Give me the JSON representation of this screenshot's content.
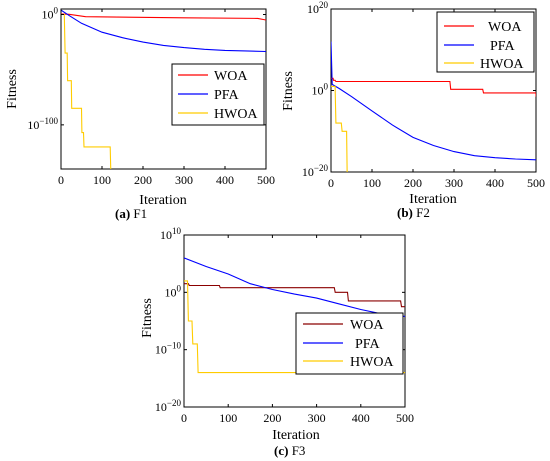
{
  "chart_data": [
    {
      "type": "line",
      "caption_letter": "(a)",
      "caption_text": " F1",
      "xlabel": "Iteration",
      "ylabel": "Fitness",
      "xlim": [
        0,
        500
      ],
      "xticks": [
        "0",
        "100",
        "200",
        "300",
        "400",
        "500"
      ],
      "ylim_log10": [
        -140,
        5
      ],
      "yticks": [
        {
          "exp": 0,
          "label": "10",
          "sup": "0"
        },
        {
          "exp": -100,
          "label": "10",
          "sup": "−100"
        }
      ],
      "legend_position": "middle-right",
      "series": [
        {
          "name": "WOA",
          "color": "#ff0000",
          "log10_points": [
            [
              0,
              0.5
            ],
            [
              20,
              0.2
            ],
            [
              60,
              -2
            ],
            [
              300,
              -3
            ],
            [
              480,
              -3.5
            ],
            [
              500,
              -5
            ]
          ]
        },
        {
          "name": "PFA",
          "color": "#0000ff",
          "log10_points": [
            [
              0,
              4
            ],
            [
              20,
              -1
            ],
            [
              50,
              -8
            ],
            [
              100,
              -16
            ],
            [
              150,
              -21
            ],
            [
              200,
              -25
            ],
            [
              250,
              -28
            ],
            [
              300,
              -30
            ],
            [
              350,
              -31.5
            ],
            [
              400,
              -32.5
            ],
            [
              450,
              -33
            ],
            [
              500,
              -33.5
            ]
          ]
        },
        {
          "name": "HWOA",
          "color": "#ffcc00",
          "log10_points": [
            [
              0,
              0
            ],
            [
              8,
              0
            ],
            [
              10,
              -35
            ],
            [
              15,
              -35
            ],
            [
              16,
              -60
            ],
            [
              25,
              -60
            ],
            [
              26,
              -85
            ],
            [
              50,
              -85
            ],
            [
              51,
              -107
            ],
            [
              55,
              -107
            ],
            [
              56,
              -120
            ],
            [
              120,
              -120
            ],
            [
              122,
              -150
            ],
            [
              500,
              -150
            ]
          ]
        }
      ]
    },
    {
      "type": "line",
      "caption_letter": "(b)",
      "caption_text": " F2",
      "xlabel": "Iteration",
      "ylabel": "Fitness",
      "xlim": [
        0,
        500
      ],
      "xticks": [
        "0",
        "100",
        "200",
        "300",
        "400",
        "500"
      ],
      "ylim_log10": [
        -20,
        20
      ],
      "yticks": [
        {
          "exp": 20,
          "label": "10",
          "sup": "20"
        },
        {
          "exp": 0,
          "label": "10",
          "sup": "0"
        },
        {
          "exp": -20,
          "label": "10",
          "sup": "−20"
        }
      ],
      "legend_position": "top-right",
      "series": [
        {
          "name": "WOA",
          "color": "#ff0000",
          "log10_points": [
            [
              0,
              3
            ],
            [
              5,
              3
            ],
            [
              6,
              2.5
            ],
            [
              10,
              2.5
            ],
            [
              12,
              2.2
            ],
            [
              290,
              2.2
            ],
            [
              292,
              0.3
            ],
            [
              370,
              0.3
            ],
            [
              372,
              -0.6
            ],
            [
              500,
              -0.6
            ],
            [
              500,
              -1.5
            ]
          ]
        },
        {
          "name": "PFA",
          "color": "#0000ff",
          "log10_points": [
            [
              0,
              12
            ],
            [
              3,
              1.5
            ],
            [
              20,
              0.5
            ],
            [
              50,
              -1.5
            ],
            [
              100,
              -5
            ],
            [
              150,
              -8.5
            ],
            [
              200,
              -11.5
            ],
            [
              250,
              -13.5
            ],
            [
              300,
              -15
            ],
            [
              350,
              -16
            ],
            [
              400,
              -16.5
            ],
            [
              450,
              -16.8
            ],
            [
              500,
              -17
            ]
          ]
        },
        {
          "name": "HWOA",
          "color": "#ffcc00",
          "log10_points": [
            [
              0,
              1
            ],
            [
              10,
              1
            ],
            [
              12,
              -8
            ],
            [
              25,
              -8
            ],
            [
              27,
              -10
            ],
            [
              38,
              -10
            ],
            [
              40,
              -25
            ],
            [
              500,
              -25
            ]
          ]
        }
      ]
    },
    {
      "type": "line",
      "caption_letter": "(c)",
      "caption_text": " F3",
      "xlabel": "Iteration",
      "ylabel": "Fitness",
      "xlim": [
        0,
        500
      ],
      "xticks": [
        "0",
        "100",
        "200",
        "300",
        "400",
        "500"
      ],
      "ylim_log10": [
        -20,
        10
      ],
      "yticks": [
        {
          "exp": 10,
          "label": "10",
          "sup": "10"
        },
        {
          "exp": 0,
          "label": "10",
          "sup": "0"
        },
        {
          "exp": -10,
          "label": "10",
          "sup": "−10"
        },
        {
          "exp": -20,
          "label": "10",
          "sup": "−20"
        }
      ],
      "legend_position": "bottom-right",
      "series": [
        {
          "name": "WOA",
          "color": "#8b0000",
          "log10_points": [
            [
              0,
              1.5
            ],
            [
              10,
              1.5
            ],
            [
              12,
              1.2
            ],
            [
              80,
              1.2
            ],
            [
              82,
              0.8
            ],
            [
              340,
              0.8
            ],
            [
              342,
              0
            ],
            [
              370,
              0
            ],
            [
              372,
              -1.5
            ],
            [
              490,
              -1.5
            ],
            [
              492,
              -2.5
            ],
            [
              500,
              -2.5
            ]
          ]
        },
        {
          "name": "PFA",
          "color": "#0000ff",
          "log10_points": [
            [
              0,
              6
            ],
            [
              50,
              4.5
            ],
            [
              100,
              3.2
            ],
            [
              150,
              1.5
            ],
            [
              200,
              0.5
            ],
            [
              250,
              -0.3
            ],
            [
              300,
              -1
            ],
            [
              350,
              -2
            ],
            [
              400,
              -3
            ],
            [
              450,
              -3.8
            ],
            [
              500,
              -4.2
            ]
          ]
        },
        {
          "name": "HWOA",
          "color": "#ffcc00",
          "log10_points": [
            [
              0,
              2
            ],
            [
              8,
              2
            ],
            [
              10,
              -5
            ],
            [
              18,
              -5
            ],
            [
              20,
              -9
            ],
            [
              30,
              -9
            ],
            [
              32,
              -14
            ],
            [
              500,
              -14
            ]
          ]
        }
      ]
    }
  ]
}
